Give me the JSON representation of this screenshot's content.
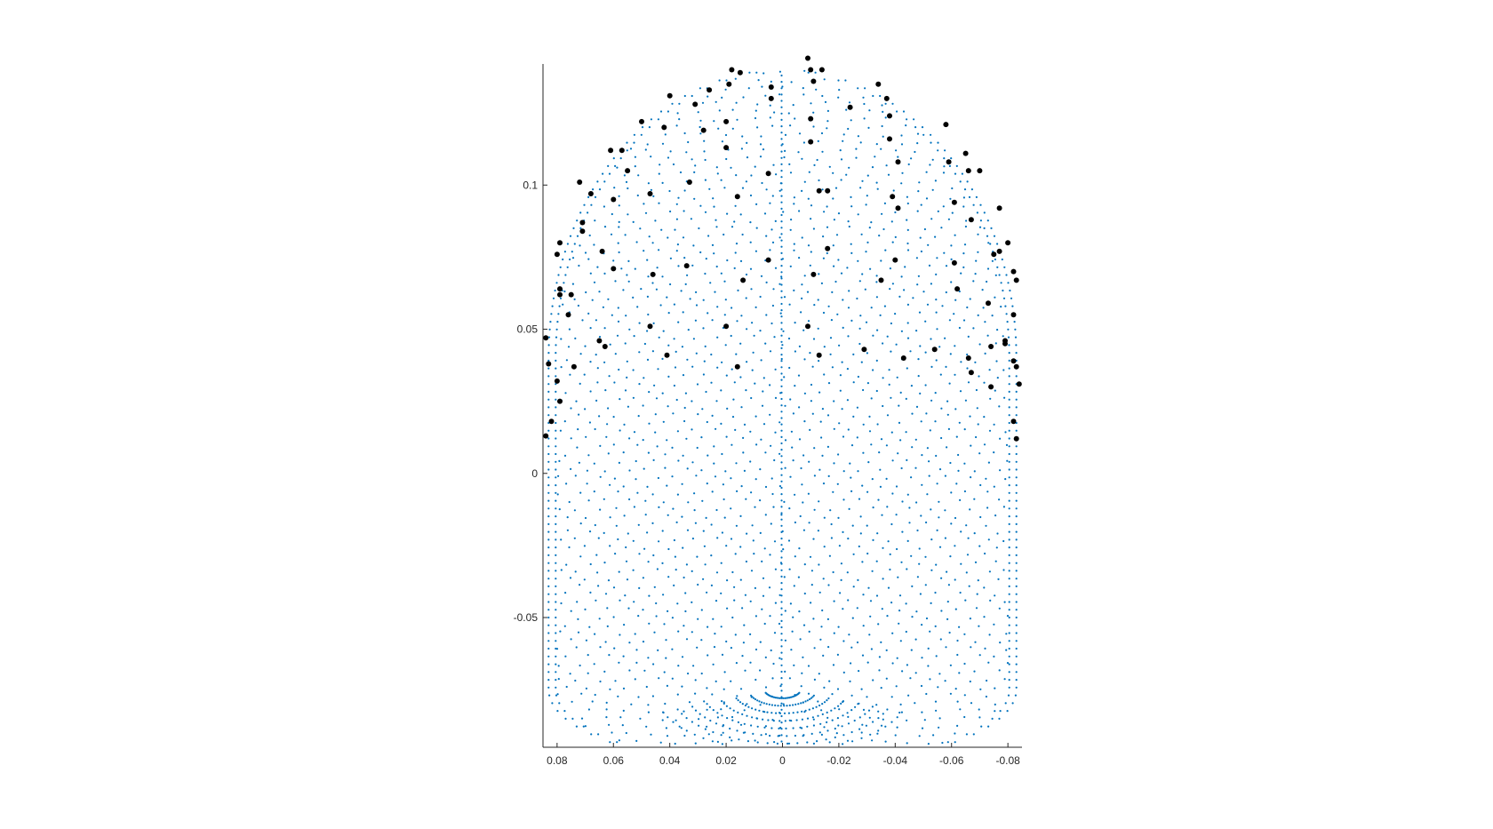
{
  "chart_data": {
    "type": "scatter",
    "title": "",
    "xlabel": "",
    "ylabel": "",
    "x_reversed": true,
    "xlim": [
      0.085,
      -0.085
    ],
    "ylim": [
      -0.095,
      0.142
    ],
    "x_ticks": [
      {
        "value": 0.08,
        "label": "0.08"
      },
      {
        "value": 0.06,
        "label": "0.06"
      },
      {
        "value": 0.04,
        "label": "0.04"
      },
      {
        "value": 0.02,
        "label": "0.02"
      },
      {
        "value": 0,
        "label": "0"
      },
      {
        "value": -0.02,
        "label": "-0.02"
      },
      {
        "value": -0.04,
        "label": "-0.04"
      },
      {
        "value": -0.06,
        "label": "-0.06"
      },
      {
        "value": -0.08,
        "label": "-0.08"
      }
    ],
    "y_ticks": [
      {
        "value": 0.1,
        "label": "0.1"
      },
      {
        "value": 0.05,
        "label": "0.05"
      },
      {
        "value": 0,
        "label": "0"
      },
      {
        "value": -0.05,
        "label": "-0.05"
      }
    ],
    "grid": false,
    "legend": "none",
    "series": [
      {
        "marker": "dot",
        "color": "#0072BD",
        "description_shape": "head-shaped point cloud (capsule outline) of dense sample points",
        "shape": {
          "x_half_width": 0.083,
          "y_top": 0.14,
          "y_bottom": -0.095,
          "cap_start": 0.04,
          "bottom_start": -0.075
        }
      },
      {
        "marker": "filled-circle",
        "color": "#000000",
        "points": [
          [
            0.084,
            0.047
          ],
          [
            0.083,
            0.038
          ],
          [
            0.08,
            0.032
          ],
          [
            0.079,
            0.025
          ],
          [
            0.082,
            0.018
          ],
          [
            0.084,
            0.013
          ],
          [
            0.079,
            0.064
          ],
          [
            0.079,
            0.062
          ],
          [
            0.075,
            0.062
          ],
          [
            0.076,
            0.055
          ],
          [
            0.074,
            0.037
          ],
          [
            0.065,
            0.046
          ],
          [
            0.063,
            0.044
          ],
          [
            0.08,
            0.076
          ],
          [
            0.079,
            0.08
          ],
          [
            0.071,
            0.087
          ],
          [
            0.071,
            0.084
          ],
          [
            0.064,
            0.077
          ],
          [
            0.06,
            0.071
          ],
          [
            0.068,
            0.097
          ],
          [
            0.072,
            0.101
          ],
          [
            0.061,
            0.112
          ],
          [
            0.057,
            0.112
          ],
          [
            0.055,
            0.105
          ],
          [
            0.06,
            0.095
          ],
          [
            0.05,
            0.122
          ],
          [
            0.047,
            0.097
          ],
          [
            0.042,
            0.12
          ],
          [
            0.04,
            0.131
          ],
          [
            0.046,
            0.069
          ],
          [
            0.047,
            0.051
          ],
          [
            0.041,
            0.041
          ],
          [
            0.034,
            0.072
          ],
          [
            0.033,
            0.101
          ],
          [
            0.031,
            0.128
          ],
          [
            0.028,
            0.119
          ],
          [
            0.026,
            0.133
          ],
          [
            0.02,
            0.122
          ],
          [
            0.02,
            0.113
          ],
          [
            0.02,
            0.051
          ],
          [
            0.016,
            0.037
          ],
          [
            0.016,
            0.096
          ],
          [
            0.014,
            0.067
          ],
          [
            0.019,
            0.135
          ],
          [
            0.018,
            0.14
          ],
          [
            0.015,
            0.139
          ],
          [
            0.004,
            0.13
          ],
          [
            0.004,
            0.134
          ],
          [
            0.005,
            0.104
          ],
          [
            0.005,
            0.074
          ],
          [
            -0.009,
            0.144
          ],
          [
            -0.01,
            0.14
          ],
          [
            -0.014,
            0.14
          ],
          [
            -0.011,
            0.136
          ],
          [
            -0.01,
            0.123
          ],
          [
            -0.01,
            0.115
          ],
          [
            -0.013,
            0.098
          ],
          [
            -0.016,
            0.098
          ],
          [
            -0.016,
            0.078
          ],
          [
            -0.011,
            0.069
          ],
          [
            -0.009,
            0.051
          ],
          [
            -0.013,
            0.041
          ],
          [
            -0.024,
            0.127
          ],
          [
            -0.029,
            0.043
          ],
          [
            -0.035,
            0.067
          ],
          [
            -0.034,
            0.135
          ],
          [
            -0.037,
            0.13
          ],
          [
            -0.038,
            0.124
          ],
          [
            -0.038,
            0.116
          ],
          [
            -0.041,
            0.108
          ],
          [
            -0.039,
            0.096
          ],
          [
            -0.041,
            0.092
          ],
          [
            -0.04,
            0.074
          ],
          [
            -0.043,
            0.04
          ],
          [
            -0.054,
            0.043
          ],
          [
            -0.058,
            0.121
          ],
          [
            -0.059,
            0.108
          ],
          [
            -0.061,
            0.094
          ],
          [
            -0.061,
            0.073
          ],
          [
            -0.062,
            0.064
          ],
          [
            -0.065,
            0.111
          ],
          [
            -0.066,
            0.105
          ],
          [
            -0.067,
            0.088
          ],
          [
            -0.066,
            0.04
          ],
          [
            -0.067,
            0.035
          ],
          [
            -0.07,
            0.105
          ],
          [
            -0.073,
            0.059
          ],
          [
            -0.074,
            0.044
          ],
          [
            -0.074,
            0.03
          ],
          [
            -0.077,
            0.092
          ],
          [
            -0.075,
            0.076
          ],
          [
            -0.077,
            0.077
          ],
          [
            -0.08,
            0.08
          ],
          [
            -0.079,
            0.046
          ],
          [
            -0.079,
            0.045
          ],
          [
            -0.082,
            0.07
          ],
          [
            -0.083,
            0.067
          ],
          [
            -0.082,
            0.055
          ],
          [
            -0.082,
            0.039
          ],
          [
            -0.083,
            0.037
          ],
          [
            -0.084,
            0.031
          ],
          [
            -0.082,
            0.018
          ],
          [
            -0.083,
            0.012
          ]
        ]
      }
    ]
  }
}
